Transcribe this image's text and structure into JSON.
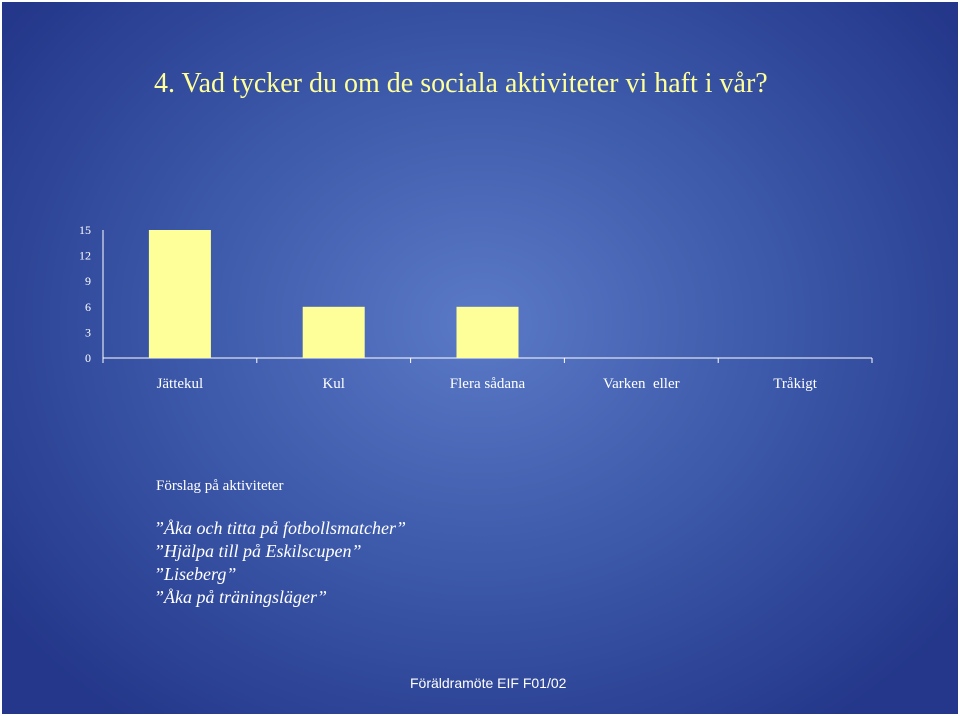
{
  "slide": {
    "title": "4. Vad tycker du om de sociala aktiviteter vi haft i vår?",
    "suggestions_heading": "Förslag på aktiviteter",
    "suggestions": [
      "”Åka och titta på fotbollsmatcher”",
      "”Hjälpa till på Eskilscupen”",
      "”Liseberg”",
      "”Åka på träningsläger”"
    ],
    "footer": "Föräldramöte EIF F01/02"
  },
  "colors": {
    "background": "#3f5cac",
    "title": "#ffff99",
    "bars": "#ffff99",
    "axis": "#ffffff",
    "text": "#ffffff"
  },
  "chart_data": {
    "type": "bar",
    "categories": [
      "Jättekul",
      "Kul",
      "Flera sådana",
      "Varken  eller",
      "Tråkigt"
    ],
    "values": [
      15,
      6,
      6,
      0,
      0
    ],
    "yticks": [
      0,
      3,
      6,
      9,
      12,
      15
    ],
    "ylim": [
      0,
      15
    ],
    "grid": false,
    "legend": "none"
  }
}
